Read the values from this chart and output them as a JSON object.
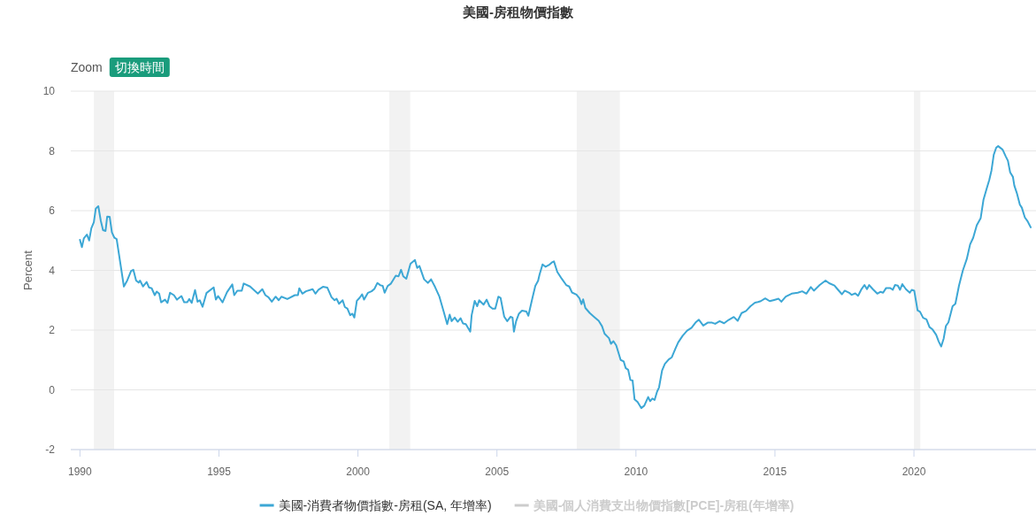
{
  "chart_data": {
    "type": "line",
    "title": "美國-房租物價指數",
    "ylabel": "Percent",
    "annotations": [
      "Zoom",
      "切換時間"
    ],
    "xlim": [
      1989.67,
      2024.39
    ],
    "xticks": [
      1990,
      1995,
      2000,
      2005,
      2010,
      2015,
      2020
    ],
    "ylim": [
      -2,
      10
    ],
    "yticks": [
      -2,
      0,
      2,
      4,
      6,
      8,
      10
    ],
    "grid": "y",
    "legend": "bottom",
    "bands": [
      {
        "axis": "x",
        "from": 1990.5,
        "to": 1991.23,
        "color": "#f2f2f2"
      },
      {
        "axis": "x",
        "from": 2001.13,
        "to": 2001.88,
        "color": "#f2f2f2"
      },
      {
        "axis": "x",
        "from": 2007.87,
        "to": 2009.42,
        "color": "#f2f2f2"
      },
      {
        "axis": "x",
        "from": 2020.0,
        "to": 2020.23,
        "color": "#f2f2f2"
      }
    ],
    "series": [
      {
        "name": "美國-消費者物價指數-房租(SA, 年增率)",
        "color": "#3ca7d5",
        "x": [
          1990.0,
          1990.07,
          1990.14,
          1990.25,
          1990.33,
          1990.41,
          1990.5,
          1990.57,
          1990.66,
          1990.75,
          1990.83,
          1990.92,
          1990.98,
          1991.07,
          1991.15,
          1991.24,
          1991.32,
          1991.58,
          1991.7,
          1991.84,
          1991.92,
          1992.02,
          1992.11,
          1992.16,
          1992.27,
          1992.4,
          1992.48,
          1992.58,
          1992.69,
          1992.76,
          1992.85,
          1992.92,
          1993.06,
          1993.15,
          1993.24,
          1993.38,
          1993.49,
          1993.65,
          1993.75,
          1993.86,
          1993.93,
          1994.02,
          1994.14,
          1994.23,
          1994.31,
          1994.41,
          1994.55,
          1994.81,
          1994.89,
          1994.97,
          1995.13,
          1995.29,
          1995.48,
          1995.55,
          1995.66,
          1995.82,
          1995.89,
          1996.12,
          1996.4,
          1996.56,
          1996.67,
          1996.78,
          1996.9,
          1997.04,
          1997.15,
          1997.25,
          1997.46,
          1997.73,
          1997.84,
          1997.89,
          1998.0,
          1998.13,
          1998.37,
          1998.47,
          1998.58,
          1998.74,
          1998.9,
          1999.05,
          1999.16,
          1999.23,
          1999.32,
          1999.45,
          1999.53,
          1999.62,
          1999.72,
          1999.8,
          1999.87,
          1999.96,
          2000.06,
          2000.15,
          2000.22,
          2000.36,
          2000.49,
          2000.59,
          2000.7,
          2000.81,
          2000.89,
          2000.96,
          2001.07,
          2001.18,
          2001.36,
          2001.46,
          2001.55,
          2001.63,
          2001.74,
          2001.89,
          2002.05,
          2002.13,
          2002.21,
          2002.38,
          2002.52,
          2002.63,
          2002.77,
          2002.93,
          2003.09,
          2003.21,
          2003.3,
          2003.37,
          2003.48,
          2003.59,
          2003.69,
          2003.78,
          2003.88,
          2004.04,
          2004.09,
          2004.2,
          2004.29,
          2004.36,
          2004.52,
          2004.63,
          2004.73,
          2004.84,
          2004.94,
          2005.05,
          2005.13,
          2005.26,
          2005.37,
          2005.49,
          2005.56,
          2005.61,
          2005.69,
          2005.79,
          2005.9,
          2006.06,
          2006.13,
          2006.27,
          2006.38,
          2006.48,
          2006.53,
          2006.64,
          2006.75,
          2006.87,
          2006.98,
          2007.05,
          2007.17,
          2007.33,
          2007.49,
          2007.6,
          2007.7,
          2007.86,
          2007.97,
          2008.04,
          2008.1,
          2008.18,
          2008.34,
          2008.5,
          2008.66,
          2008.78,
          2008.87,
          2009.03,
          2009.1,
          2009.19,
          2009.29,
          2009.45,
          2009.56,
          2009.63,
          2009.72,
          2009.8,
          2009.88,
          2009.95,
          2010.06,
          2010.19,
          2010.3,
          2010.44,
          2010.51,
          2010.59,
          2010.67,
          2010.76,
          2010.83,
          2010.94,
          2011.04,
          2011.18,
          2011.29,
          2011.41,
          2011.52,
          2011.68,
          2011.84,
          2012.0,
          2012.14,
          2012.26,
          2012.42,
          2012.58,
          2012.74,
          2012.85,
          2013.01,
          2013.17,
          2013.33,
          2013.52,
          2013.66,
          2013.8,
          2013.96,
          2014.12,
          2014.28,
          2014.39,
          2014.49,
          2014.65,
          2014.81,
          2014.97,
          2015.13,
          2015.23,
          2015.39,
          2015.6,
          2015.82,
          2015.98,
          2016.13,
          2016.29,
          2016.4,
          2016.61,
          2016.82,
          2016.95,
          2017.14,
          2017.25,
          2017.41,
          2017.51,
          2017.67,
          2017.76,
          2017.89,
          2017.99,
          2018.1,
          2018.22,
          2018.31,
          2018.39,
          2018.52,
          2018.68,
          2018.79,
          2018.89,
          2019.0,
          2019.14,
          2019.24,
          2019.32,
          2019.42,
          2019.5,
          2019.58,
          2019.71,
          2019.85,
          2019.92,
          2020.01,
          2020.13,
          2020.22,
          2020.33,
          2020.45,
          2020.56,
          2020.67,
          2020.8,
          2020.89,
          2020.98,
          2021.07,
          2021.15,
          2021.24,
          2021.39,
          2021.49,
          2021.62,
          2021.76,
          2021.9,
          2022.02,
          2022.13,
          2022.26,
          2022.4,
          2022.5,
          2022.61,
          2022.71,
          2022.79,
          2022.87,
          2022.96,
          2023.03,
          2023.19,
          2023.3,
          2023.38,
          2023.46,
          2023.56,
          2023.61,
          2023.7,
          2023.81,
          2023.88,
          2023.99,
          2024.09,
          2024.2
        ],
        "values": [
          5.02,
          4.78,
          5.07,
          5.2,
          5.0,
          5.41,
          5.61,
          6.07,
          6.15,
          5.66,
          5.35,
          5.32,
          5.8,
          5.79,
          5.27,
          5.09,
          5.05,
          3.46,
          3.66,
          3.98,
          4.02,
          3.66,
          3.59,
          3.66,
          3.46,
          3.61,
          3.43,
          3.4,
          3.17,
          3.29,
          3.22,
          2.93,
          3.02,
          2.91,
          3.25,
          3.17,
          3.02,
          3.14,
          2.93,
          2.93,
          3.04,
          2.91,
          3.34,
          2.95,
          3.0,
          2.78,
          3.24,
          3.43,
          3.02,
          3.14,
          2.93,
          3.27,
          3.53,
          3.17,
          3.32,
          3.32,
          3.56,
          3.46,
          3.22,
          3.37,
          3.17,
          3.1,
          2.95,
          3.12,
          3.0,
          3.12,
          3.04,
          3.17,
          3.17,
          3.4,
          3.22,
          3.3,
          3.37,
          3.22,
          3.35,
          3.45,
          3.42,
          3.1,
          3.0,
          3.05,
          2.88,
          3.0,
          2.77,
          2.72,
          2.5,
          2.55,
          2.42,
          2.98,
          3.08,
          3.2,
          3.02,
          3.25,
          3.3,
          3.38,
          3.58,
          3.5,
          3.48,
          3.25,
          3.48,
          3.55,
          3.82,
          3.8,
          4.02,
          3.8,
          3.72,
          4.22,
          4.35,
          4.08,
          4.15,
          3.7,
          3.58,
          3.7,
          3.45,
          3.12,
          2.6,
          2.2,
          2.52,
          2.3,
          2.42,
          2.28,
          2.4,
          2.22,
          2.2,
          1.95,
          2.5,
          2.98,
          2.8,
          3.0,
          2.85,
          3.02,
          2.8,
          2.72,
          2.72,
          3.12,
          3.08,
          2.45,
          2.3,
          2.45,
          2.42,
          1.95,
          2.3,
          2.55,
          2.65,
          2.62,
          2.48,
          3.05,
          3.48,
          3.65,
          3.85,
          4.2,
          4.12,
          4.18,
          4.27,
          4.3,
          3.95,
          3.72,
          3.51,
          3.46,
          3.26,
          3.19,
          3.06,
          2.87,
          3.03,
          2.74,
          2.57,
          2.44,
          2.31,
          2.13,
          1.88,
          1.73,
          1.54,
          1.63,
          1.49,
          1.0,
          0.95,
          0.73,
          0.67,
          0.33,
          0.31,
          -0.32,
          -0.41,
          -0.61,
          -0.53,
          -0.24,
          -0.38,
          -0.29,
          -0.34,
          -0.06,
          0.08,
          0.65,
          0.87,
          1.02,
          1.09,
          1.36,
          1.59,
          1.81,
          1.98,
          2.08,
          2.25,
          2.35,
          2.15,
          2.25,
          2.25,
          2.21,
          2.3,
          2.23,
          2.34,
          2.44,
          2.31,
          2.57,
          2.64,
          2.8,
          2.92,
          2.94,
          2.97,
          3.06,
          2.97,
          3.01,
          3.05,
          2.95,
          3.12,
          3.22,
          3.25,
          3.3,
          3.22,
          3.44,
          3.32,
          3.51,
          3.66,
          3.57,
          3.49,
          3.37,
          3.2,
          3.32,
          3.25,
          3.18,
          3.23,
          3.15,
          3.35,
          3.51,
          3.37,
          3.51,
          3.37,
          3.22,
          3.28,
          3.25,
          3.41,
          3.41,
          3.35,
          3.51,
          3.49,
          3.35,
          3.54,
          3.37,
          3.25,
          3.35,
          3.32,
          2.66,
          2.61,
          2.41,
          2.36,
          2.1,
          2.02,
          1.84,
          1.62,
          1.45,
          1.72,
          2.14,
          2.26,
          2.8,
          2.88,
          3.49,
          4.0,
          4.38,
          4.87,
          5.09,
          5.51,
          5.75,
          6.36,
          6.72,
          7.03,
          7.35,
          7.87,
          8.11,
          8.16,
          8.04,
          7.82,
          7.67,
          7.28,
          7.13,
          6.84,
          6.59,
          6.2,
          6.1,
          5.77,
          5.64,
          5.44
        ]
      },
      {
        "name": "美國-個人消費支出物價指數[PCE]-房租(年增率)",
        "color": "#cccccc"
      }
    ]
  }
}
